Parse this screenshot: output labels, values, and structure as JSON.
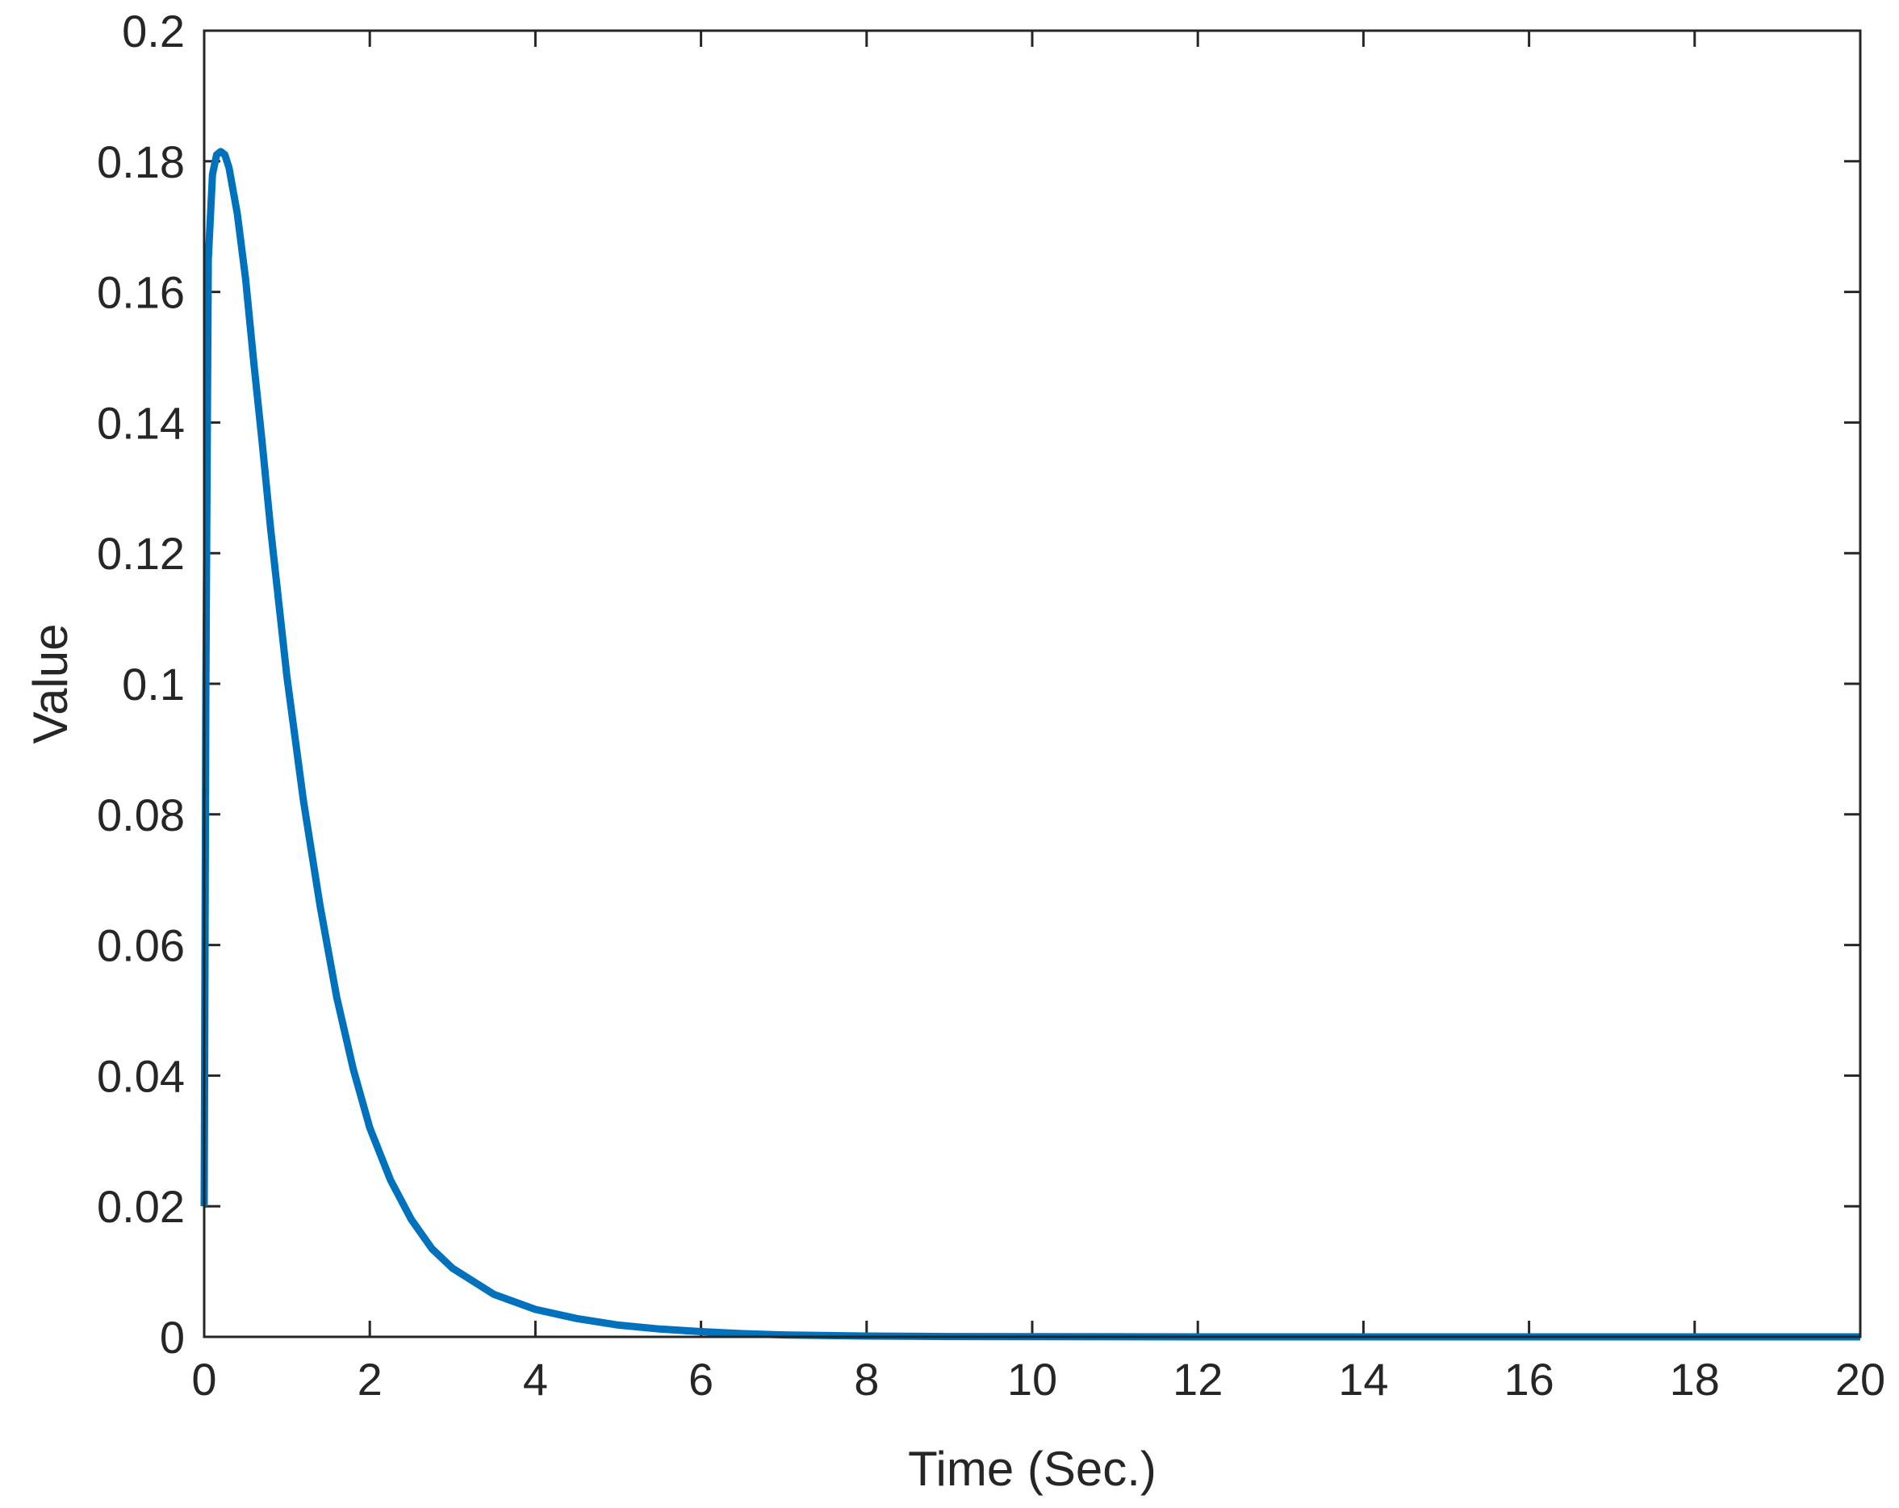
{
  "chart_data": {
    "type": "line",
    "title": "",
    "xlabel": "Time (Sec.)",
    "ylabel": "Value",
    "xlim": [
      0,
      20
    ],
    "ylim": [
      0,
      0.2
    ],
    "x_ticks": [
      0,
      2,
      4,
      6,
      8,
      10,
      12,
      14,
      16,
      18,
      20
    ],
    "x_tick_labels": [
      "0",
      "2",
      "4",
      "6",
      "8",
      "10",
      "12",
      "14",
      "16",
      "18",
      "20"
    ],
    "y_ticks": [
      0,
      0.02,
      0.04,
      0.06,
      0.08,
      0.1,
      0.12,
      0.14,
      0.16,
      0.18,
      0.2
    ],
    "y_tick_labels": [
      "0",
      "0.02",
      "0.04",
      "0.06",
      "0.08",
      "0.1",
      "0.12",
      "0.14",
      "0.16",
      "0.18",
      "0.2"
    ],
    "grid": false,
    "legend": "none",
    "series": [
      {
        "color": "#0072BD",
        "x": [
          0,
          0.02,
          0.05,
          0.1,
          0.15,
          0.2,
          0.25,
          0.3,
          0.4,
          0.5,
          0.6,
          0.7,
          0.8,
          1.0,
          1.2,
          1.4,
          1.6,
          1.8,
          2.0,
          2.25,
          2.5,
          2.75,
          3.0,
          3.5,
          4.0,
          4.5,
          5.0,
          5.5,
          6.0,
          6.5,
          7.0,
          8.0,
          9.0,
          10.0,
          12.0,
          14.0,
          16.0,
          18.0,
          20.0
        ],
        "y": [
          0.02,
          0.1,
          0.165,
          0.178,
          0.181,
          0.1815,
          0.181,
          0.179,
          0.172,
          0.162,
          0.149,
          0.137,
          0.124,
          0.101,
          0.082,
          0.066,
          0.052,
          0.041,
          0.032,
          0.024,
          0.018,
          0.0135,
          0.0105,
          0.0065,
          0.0042,
          0.0028,
          0.0018,
          0.0012,
          0.0008,
          0.0005,
          0.0003,
          0.00012,
          5e-05,
          2e-05,
          0,
          0,
          0,
          0,
          0
        ]
      }
    ]
  }
}
